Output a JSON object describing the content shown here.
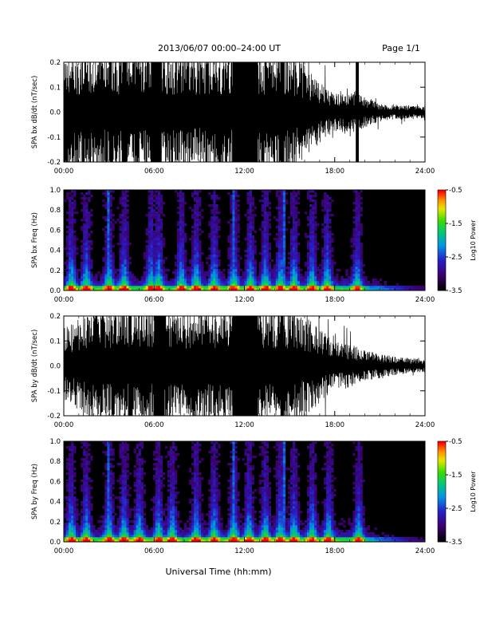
{
  "header": {
    "title": "2013/06/07  00:00–24:00 UT",
    "page": "Page 1/1"
  },
  "footer": {
    "xlabel": "Universal Time (hh:mm)"
  },
  "chart_data": [
    {
      "type": "line",
      "ylabel": "SPA bx dB/dt (nT/sec)",
      "xlim": [
        0,
        24
      ],
      "ylim": [
        -0.2,
        0.2
      ],
      "x_ticks": [
        "00:00",
        "06:00",
        "12:00",
        "18:00",
        "24:00"
      ],
      "y_ticks": [
        "-0.2",
        "-0.1",
        "0.0",
        "0.1",
        "0.2"
      ],
      "series": [
        {
          "x": [
            0,
            1,
            2,
            3,
            4,
            5,
            6,
            7,
            8,
            9,
            10,
            11,
            12,
            13,
            14,
            15,
            16,
            17,
            18,
            19,
            20,
            21,
            22,
            23,
            24
          ],
          "y_envelope": [
            0.2,
            0.2,
            0.2,
            0.2,
            0.2,
            0.2,
            0.2,
            0.2,
            0.2,
            0.18,
            0.2,
            0.2,
            0.2,
            0.2,
            0.2,
            0.2,
            0.15,
            0.1,
            0.06,
            0.08,
            0.05,
            0.03,
            0.025,
            0.02,
            0.02
          ]
        }
      ],
      "saturated_ranges_hours": [
        [
          3.9,
          4.2
        ],
        [
          5.8,
          6.5
        ],
        [
          11.2,
          12.9
        ],
        [
          14.4,
          14.6
        ],
        [
          19.4,
          19.6
        ]
      ]
    },
    {
      "type": "heatmap",
      "ylabel": "SPA bx Freq (Hz)",
      "xlim": [
        0,
        24
      ],
      "ylim": [
        0.0,
        1.0
      ],
      "x_ticks": [
        "00:00",
        "06:00",
        "12:00",
        "18:00",
        "24:00"
      ],
      "y_ticks": [
        "0.0",
        "0.2",
        "0.4",
        "0.6",
        "0.8",
        "1.0"
      ],
      "colorbar": {
        "label": "Log10 Power",
        "ticks": [
          "-0.5",
          "-1.5",
          "-2.5",
          "-3.5"
        ],
        "range": [
          -3.5,
          -0.5
        ]
      },
      "bursts_hours": [
        0.5,
        1.5,
        3.0,
        4.0,
        5.8,
        6.3,
        7.8,
        8.8,
        10.0,
        11.3,
        12.4,
        13.4,
        14.4,
        15.3,
        16.5,
        17.5,
        19.5
      ],
      "lines_hours": [
        3.0,
        11.3,
        14.6
      ]
    },
    {
      "type": "line",
      "ylabel": "SPA by dB/dt (nT/sec)",
      "xlim": [
        0,
        24
      ],
      "ylim": [
        -0.2,
        0.2
      ],
      "x_ticks": [
        "00:00",
        "06:00",
        "12:00",
        "18:00",
        "24:00"
      ],
      "y_ticks": [
        "-0.2",
        "-0.1",
        "0.0",
        "0.1",
        "0.2"
      ],
      "series": [
        {
          "x": [
            0,
            1,
            2,
            3,
            4,
            5,
            6,
            7,
            8,
            9,
            10,
            11,
            12,
            13,
            14,
            15,
            16,
            17,
            18,
            19,
            20,
            21,
            22,
            23,
            24
          ],
          "y_envelope": [
            0.12,
            0.15,
            0.2,
            0.2,
            0.2,
            0.2,
            0.2,
            0.2,
            0.18,
            0.2,
            0.2,
            0.2,
            0.2,
            0.2,
            0.2,
            0.2,
            0.16,
            0.12,
            0.08,
            0.07,
            0.05,
            0.04,
            0.03,
            0.025,
            0.02
          ]
        }
      ],
      "saturated_ranges_hours": [
        [
          4.3,
          4.5
        ],
        [
          6.0,
          6.7
        ],
        [
          11.2,
          12.9
        ],
        [
          14.4,
          14.6
        ]
      ]
    },
    {
      "type": "heatmap",
      "ylabel": "SPA by Freq (Hz)",
      "xlim": [
        0,
        24
      ],
      "ylim": [
        0.0,
        1.0
      ],
      "x_ticks": [
        "00:00",
        "06:00",
        "12:00",
        "18:00",
        "24:00"
      ],
      "y_ticks": [
        "0.0",
        "0.2",
        "0.4",
        "0.6",
        "0.8",
        "1.0"
      ],
      "colorbar": {
        "label": "Log10 Power",
        "ticks": [
          "-0.5",
          "-1.5",
          "-2.5",
          "-3.5"
        ],
        "range": [
          -3.5,
          -0.5
        ]
      },
      "bursts_hours": [
        0.5,
        1.5,
        3.0,
        4.0,
        5.0,
        6.3,
        7.2,
        8.8,
        10.0,
        11.3,
        12.3,
        13.4,
        14.4,
        15.3,
        16.5,
        17.6,
        19.6
      ],
      "lines_hours": [
        3.0,
        11.3,
        14.6
      ]
    }
  ]
}
